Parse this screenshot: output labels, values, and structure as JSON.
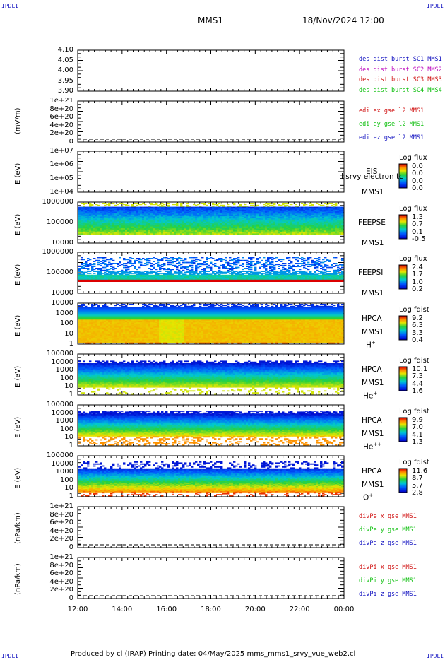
{
  "corners": {
    "tl": "IPDLI",
    "tr": "IPDLI",
    "bl": "IPDLI",
    "br": "IPDLI"
  },
  "header": {
    "spacecraft": "MMS1",
    "datetime": "18/Nov/2024 12:00"
  },
  "footer": {
    "text": "Produced by cl (IRAP)   Printing date: 04/May/2025   mms_mms1_srvy_vue_web2.cl"
  },
  "colors": {
    "blue": "#1010c0",
    "magenta": "#c010c0",
    "red": "#d01010",
    "green": "#10c010"
  },
  "chart_data": [
    {
      "type": "line",
      "panel": "dist-burst",
      "ytick_labels": [
        "4.10",
        "4.05",
        "4.00",
        "3.95",
        "3.90"
      ],
      "ylim": [
        3.9,
        4.1
      ],
      "series": [
        {
          "name": "des dist burst SC1 MMS1",
          "color": "#1010c0"
        },
        {
          "name": "des dist burst SC2 MMS2",
          "color": "#c010c0"
        },
        {
          "name": "des dist burst SC3 MMS3",
          "color": "#d01010"
        },
        {
          "name": "des dist burst SC4 MMS4",
          "color": "#10c010"
        }
      ]
    },
    {
      "type": "line",
      "panel": "edi",
      "ylabel": "(mV/m)",
      "ytick_labels": [
        "1e+21",
        "8e+20",
        "6e+20",
        "4e+20",
        "2e+20",
        "0"
      ],
      "ylim": [
        0,
        1e+21
      ],
      "series": [
        {
          "name": "edi ex gse l2 MMS1",
          "color": "#d01010"
        },
        {
          "name": "edi ey gse l2 MMS1",
          "color": "#10c010"
        },
        {
          "name": "edi ez gse l2 MMS1",
          "color": "#1010c0"
        }
      ]
    },
    {
      "type": "heatmap",
      "panel": "eis",
      "ylabel": "E (eV)",
      "ytick_labels": [
        "1e+07",
        "1e+06",
        "1e+05",
        "1e+04"
      ],
      "log": true,
      "instrument": [
        "EIS",
        "MMS1"
      ],
      "overlay": "l srvy electron tc",
      "cb_title": "Log flux",
      "cb_ticks": [
        "0.0",
        "0.0",
        "0.0",
        "0.0"
      ]
    },
    {
      "type": "heatmap",
      "panel": "feepse",
      "ylabel": "E (eV)",
      "ytick_labels": [
        "1000000",
        "100000",
        "10000"
      ],
      "log": true,
      "instrument": [
        "FEEPSE",
        "MMS1"
      ],
      "cb_title": "Log flux",
      "cb_ticks": [
        "1.3",
        "0.7",
        "0.1",
        "-0.5"
      ]
    },
    {
      "type": "heatmap",
      "panel": "feepsi",
      "ylabel": "E (eV)",
      "ytick_labels": [
        "1000000",
        "100000",
        "10000"
      ],
      "log": true,
      "instrument": [
        "FEEPSI",
        "MMS1"
      ],
      "cb_title": "Log flux",
      "cb_ticks": [
        "2.4",
        "1.7",
        "1.0",
        "0.2"
      ]
    },
    {
      "type": "heatmap",
      "panel": "hpca-h",
      "ylabel": "E (eV)",
      "ytick_labels": [
        "10000",
        "1000",
        "100",
        "10",
        "1"
      ],
      "log": true,
      "instrument": [
        "HPCA",
        "MMS1"
      ],
      "species": "H",
      "charge": "+",
      "cb_title": "Log fdist",
      "cb_ticks": [
        "9.2",
        "6.3",
        "3.3",
        "0.4"
      ]
    },
    {
      "type": "heatmap",
      "panel": "hpca-he",
      "ylabel": "E (eV)",
      "ytick_labels": [
        "100000",
        "10000",
        "1000",
        "100",
        "10",
        "1"
      ],
      "log": true,
      "instrument": [
        "HPCA",
        "MMS1"
      ],
      "species": "He",
      "charge": "+",
      "cb_title": "Log fdist",
      "cb_ticks": [
        "10.1",
        "7.3",
        "4.4",
        "1.6"
      ]
    },
    {
      "type": "heatmap",
      "panel": "hpca-hepp",
      "ylabel": "E (eV)",
      "ytick_labels": [
        "100000",
        "10000",
        "1000",
        "100",
        "10",
        "1"
      ],
      "log": true,
      "instrument": [
        "HPCA",
        "MMS1"
      ],
      "species": "He",
      "charge": "++",
      "cb_title": "Log fdist",
      "cb_ticks": [
        "9.9",
        "7.0",
        "4.1",
        "1.3"
      ]
    },
    {
      "type": "heatmap",
      "panel": "hpca-o",
      "ylabel": "E (eV)",
      "ytick_labels": [
        "100000",
        "10000",
        "1000",
        "100",
        "10",
        "1"
      ],
      "log": true,
      "instrument": [
        "HPCA",
        "MMS1"
      ],
      "species": "O",
      "charge": "+",
      "cb_title": "Log fdist",
      "cb_ticks": [
        "11.6",
        "8.7",
        "5.7",
        "2.8"
      ]
    },
    {
      "type": "line",
      "panel": "divpe",
      "ylabel": "(nPa/km)",
      "ytick_labels": [
        "1e+21",
        "8e+20",
        "6e+20",
        "4e+20",
        "2e+20",
        "0"
      ],
      "ylim": [
        0,
        1e+21
      ],
      "series": [
        {
          "name": "divPe x gse MMS1",
          "color": "#d01010"
        },
        {
          "name": "divPe y gse MMS1",
          "color": "#10c010"
        },
        {
          "name": "divPe z gse MMS1",
          "color": "#1010c0"
        }
      ]
    },
    {
      "type": "line",
      "panel": "divpi",
      "ylabel": "(nPa/km)",
      "ytick_labels": [
        "1e+21",
        "8e+20",
        "6e+20",
        "4e+20",
        "2e+20",
        "0"
      ],
      "ylim": [
        0,
        1e+21
      ],
      "series": [
        {
          "name": "divPi x gse MMS1",
          "color": "#d01010"
        },
        {
          "name": "divPi y gse MMS1",
          "color": "#10c010"
        },
        {
          "name": "divPi z gse MMS1",
          "color": "#1010c0"
        }
      ]
    }
  ],
  "xaxis": {
    "tick_labels": [
      "12:00",
      "14:00",
      "16:00",
      "18:00",
      "20:00",
      "22:00",
      "00:00"
    ]
  }
}
